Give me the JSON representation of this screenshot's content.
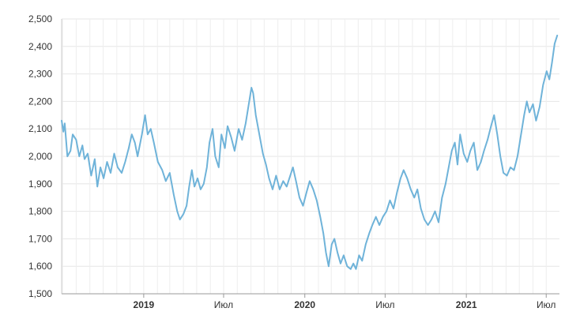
{
  "chart_data": {
    "type": "line",
    "title": "",
    "xlabel": "",
    "ylabel": "",
    "ylim": [
      1500,
      2500
    ],
    "yticks": [
      1500,
      1600,
      1700,
      1800,
      1900,
      2000,
      2100,
      2200,
      2300,
      2400,
      2500
    ],
    "ytick_labels": [
      "1,500",
      "1,600",
      "1,700",
      "1,800",
      "1,900",
      "2,000",
      "2,100",
      "2,200",
      "2,300",
      "2,400",
      "2,500"
    ],
    "xlim": [
      "2018-06-29",
      "2021-07-31"
    ],
    "xticks": [
      {
        "date": "2019-01-01",
        "label": "2019",
        "bold": true
      },
      {
        "date": "2019-07-01",
        "label": "Июл",
        "bold": false
      },
      {
        "date": "2020-01-01",
        "label": "2020",
        "bold": true
      },
      {
        "date": "2020-07-01",
        "label": "Июл",
        "bold": false
      },
      {
        "date": "2021-01-01",
        "label": "2021",
        "bold": true
      },
      {
        "date": "2021-07-01",
        "label": "Июл",
        "bold": false
      }
    ],
    "grid": true,
    "line_color": "#6fb3d9",
    "series": [
      {
        "points": [
          [
            "2018-06-29",
            2130
          ],
          [
            "2018-07-03",
            2090
          ],
          [
            "2018-07-06",
            2120
          ],
          [
            "2018-07-12",
            2000
          ],
          [
            "2018-07-19",
            2020
          ],
          [
            "2018-07-24",
            2080
          ],
          [
            "2018-08-01",
            2060
          ],
          [
            "2018-08-08",
            2000
          ],
          [
            "2018-08-15",
            2040
          ],
          [
            "2018-08-20",
            1990
          ],
          [
            "2018-08-27",
            2010
          ],
          [
            "2018-09-04",
            1930
          ],
          [
            "2018-09-12",
            1990
          ],
          [
            "2018-09-18",
            1890
          ],
          [
            "2018-09-25",
            1960
          ],
          [
            "2018-10-02",
            1920
          ],
          [
            "2018-10-10",
            1980
          ],
          [
            "2018-10-18",
            1940
          ],
          [
            "2018-10-26",
            2010
          ],
          [
            "2018-11-03",
            1960
          ],
          [
            "2018-11-12",
            1940
          ],
          [
            "2018-11-20",
            1980
          ],
          [
            "2018-11-28",
            2030
          ],
          [
            "2018-12-05",
            2080
          ],
          [
            "2018-12-12",
            2050
          ],
          [
            "2018-12-18",
            2000
          ],
          [
            "2018-12-28",
            2080
          ],
          [
            "2019-01-04",
            2150
          ],
          [
            "2019-01-10",
            2080
          ],
          [
            "2019-01-17",
            2100
          ],
          [
            "2019-01-24",
            2050
          ],
          [
            "2019-02-02",
            1980
          ],
          [
            "2019-02-12",
            1950
          ],
          [
            "2019-02-20",
            1910
          ],
          [
            "2019-03-01",
            1940
          ],
          [
            "2019-03-10",
            1860
          ],
          [
            "2019-03-18",
            1800
          ],
          [
            "2019-03-24",
            1770
          ],
          [
            "2019-04-01",
            1790
          ],
          [
            "2019-04-08",
            1820
          ],
          [
            "2019-04-14",
            1890
          ],
          [
            "2019-04-20",
            1950
          ],
          [
            "2019-04-26",
            1890
          ],
          [
            "2019-05-03",
            1920
          ],
          [
            "2019-05-10",
            1880
          ],
          [
            "2019-05-17",
            1900
          ],
          [
            "2019-05-24",
            1960
          ],
          [
            "2019-05-30",
            2050
          ],
          [
            "2019-06-06",
            2100
          ],
          [
            "2019-06-12",
            2000
          ],
          [
            "2019-06-20",
            1960
          ],
          [
            "2019-06-26",
            2080
          ],
          [
            "2019-07-04",
            2030
          ],
          [
            "2019-07-10",
            2110
          ],
          [
            "2019-07-18",
            2070
          ],
          [
            "2019-07-26",
            2020
          ],
          [
            "2019-08-04",
            2100
          ],
          [
            "2019-08-12",
            2060
          ],
          [
            "2019-08-20",
            2120
          ],
          [
            "2019-08-28",
            2200
          ],
          [
            "2019-09-02",
            2250
          ],
          [
            "2019-09-06",
            2230
          ],
          [
            "2019-09-12",
            2150
          ],
          [
            "2019-09-20",
            2080
          ],
          [
            "2019-09-28",
            2010
          ],
          [
            "2019-10-05",
            1970
          ],
          [
            "2019-10-12",
            1920
          ],
          [
            "2019-10-20",
            1880
          ],
          [
            "2019-10-28",
            1930
          ],
          [
            "2019-11-05",
            1880
          ],
          [
            "2019-11-13",
            1910
          ],
          [
            "2019-11-21",
            1890
          ],
          [
            "2019-11-29",
            1930
          ],
          [
            "2019-12-05",
            1960
          ],
          [
            "2019-12-12",
            1910
          ],
          [
            "2019-12-20",
            1850
          ],
          [
            "2019-12-28",
            1820
          ],
          [
            "2020-01-05",
            1870
          ],
          [
            "2020-01-12",
            1910
          ],
          [
            "2020-01-20",
            1880
          ],
          [
            "2020-01-28",
            1840
          ],
          [
            "2020-02-05",
            1780
          ],
          [
            "2020-02-12",
            1720
          ],
          [
            "2020-02-18",
            1650
          ],
          [
            "2020-02-24",
            1600
          ],
          [
            "2020-03-02",
            1680
          ],
          [
            "2020-03-08",
            1700
          ],
          [
            "2020-03-15",
            1650
          ],
          [
            "2020-03-22",
            1610
          ],
          [
            "2020-03-29",
            1640
          ],
          [
            "2020-04-06",
            1600
          ],
          [
            "2020-04-14",
            1590
          ],
          [
            "2020-04-20",
            1610
          ],
          [
            "2020-04-26",
            1590
          ],
          [
            "2020-05-03",
            1640
          ],
          [
            "2020-05-10",
            1620
          ],
          [
            "2020-05-18",
            1680
          ],
          [
            "2020-05-26",
            1720
          ],
          [
            "2020-06-02",
            1750
          ],
          [
            "2020-06-10",
            1780
          ],
          [
            "2020-06-18",
            1750
          ],
          [
            "2020-06-26",
            1780
          ],
          [
            "2020-07-04",
            1800
          ],
          [
            "2020-07-12",
            1840
          ],
          [
            "2020-07-20",
            1810
          ],
          [
            "2020-07-28",
            1870
          ],
          [
            "2020-08-05",
            1920
          ],
          [
            "2020-08-12",
            1950
          ],
          [
            "2020-08-20",
            1920
          ],
          [
            "2020-08-28",
            1880
          ],
          [
            "2020-09-05",
            1850
          ],
          [
            "2020-09-12",
            1880
          ],
          [
            "2020-09-20",
            1810
          ],
          [
            "2020-09-28",
            1770
          ],
          [
            "2020-10-06",
            1750
          ],
          [
            "2020-10-14",
            1770
          ],
          [
            "2020-10-22",
            1800
          ],
          [
            "2020-10-30",
            1760
          ],
          [
            "2020-11-07",
            1850
          ],
          [
            "2020-11-15",
            1900
          ],
          [
            "2020-11-22",
            1960
          ],
          [
            "2020-11-29",
            2020
          ],
          [
            "2020-12-06",
            2050
          ],
          [
            "2020-12-12",
            1970
          ],
          [
            "2020-12-18",
            2080
          ],
          [
            "2020-12-26",
            2010
          ],
          [
            "2021-01-03",
            1980
          ],
          [
            "2021-01-10",
            2020
          ],
          [
            "2021-01-18",
            2050
          ],
          [
            "2021-01-26",
            1950
          ],
          [
            "2021-02-03",
            1980
          ],
          [
            "2021-02-10",
            2020
          ],
          [
            "2021-02-18",
            2060
          ],
          [
            "2021-02-26",
            2110
          ],
          [
            "2021-03-05",
            2150
          ],
          [
            "2021-03-12",
            2080
          ],
          [
            "2021-03-19",
            2000
          ],
          [
            "2021-03-26",
            1940
          ],
          [
            "2021-04-03",
            1930
          ],
          [
            "2021-04-11",
            1960
          ],
          [
            "2021-04-19",
            1950
          ],
          [
            "2021-04-27",
            2000
          ],
          [
            "2021-05-05",
            2080
          ],
          [
            "2021-05-12",
            2150
          ],
          [
            "2021-05-18",
            2200
          ],
          [
            "2021-05-24",
            2160
          ],
          [
            "2021-06-01",
            2190
          ],
          [
            "2021-06-08",
            2130
          ],
          [
            "2021-06-16",
            2180
          ],
          [
            "2021-06-24",
            2260
          ],
          [
            "2021-07-02",
            2310
          ],
          [
            "2021-07-08",
            2280
          ],
          [
            "2021-07-14",
            2340
          ],
          [
            "2021-07-20",
            2410
          ],
          [
            "2021-07-26",
            2440
          ]
        ]
      }
    ]
  }
}
